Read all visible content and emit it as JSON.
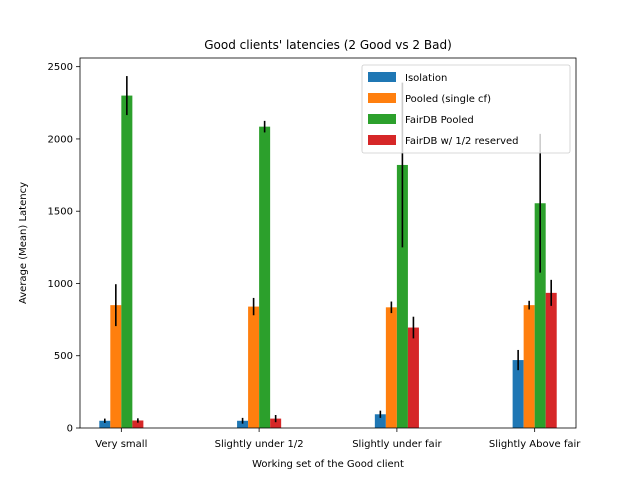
{
  "chart_data": {
    "type": "bar",
    "title": "Good clients' latencies (2 Good vs 2 Bad)",
    "xlabel": "Working set of the Good client",
    "ylabel": "Average (Mean) Latency",
    "ylim": [
      0,
      2560
    ],
    "yticks": [
      0,
      500,
      1000,
      1500,
      2000,
      2500
    ],
    "grid": false,
    "legend_position": "top-right",
    "categories": [
      "Very small",
      "Slightly under 1/2",
      "Slightly under fair",
      "Slightly Above fair"
    ],
    "series": [
      {
        "name": "Isolation",
        "color": "#1f77b4",
        "values": [
          50,
          50,
          95,
          470
        ],
        "errors": [
          15,
          20,
          25,
          70
        ]
      },
      {
        "name": "Pooled (single cf)",
        "color": "#ff7f0e",
        "values": [
          850,
          840,
          835,
          850
        ],
        "errors": [
          145,
          60,
          40,
          30
        ]
      },
      {
        "name": "FairDB Pooled",
        "color": "#2ca02c",
        "values": [
          2300,
          2085,
          1820,
          1555
        ],
        "errors": [
          135,
          40,
          570,
          480
        ]
      },
      {
        "name": "FairDB w/ 1/2 reserved",
        "color": "#d62728",
        "values": [
          52,
          65,
          695,
          935
        ],
        "errors": [
          15,
          25,
          75,
          90
        ]
      }
    ]
  }
}
